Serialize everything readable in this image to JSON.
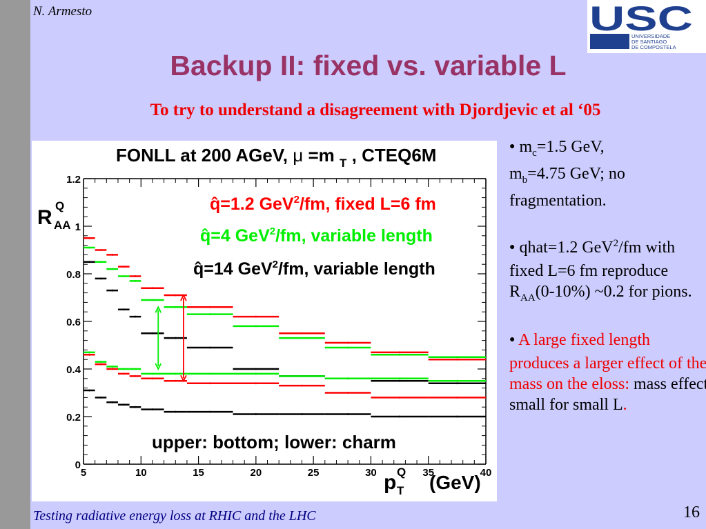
{
  "slide": {
    "author": "N. Armesto",
    "title": "Backup II: fixed vs. variable L",
    "subtitle": "To try to understand a disagreement with Djordjevic et al ‘05",
    "footer": "Testing radiative energy loss at RHIC and the LHC",
    "page_number": "16"
  },
  "logo": {
    "text": "USC",
    "lines": [
      "UNIVERSIDADE",
      "DE SANTIAGO",
      "DE COMPOSTELA"
    ],
    "color": "#1f3f8f"
  },
  "bullets": {
    "b1": {
      "mc_pre": "m",
      "mc_sub": "c",
      "mc_val": "=1.5 GeV,",
      "mb_pre": "m",
      "mb_sub": "b",
      "mb_val": "=4.75 GeV; no fragmentation."
    },
    "b2": {
      "l1a": "qhat=1.2 GeV",
      "l1sup": "2",
      "l1b": "/fm",
      "l2": "with fixed L=6 fm reproduce R",
      "l2sub": "AA",
      "l2b": "(0-10%)",
      "l3": "~0.2 for pions."
    },
    "b3": {
      "red": "A large fixed length produces a larger effect of the mass on the eloss:",
      "black": " mass effect small for small L",
      "end": "."
    }
  },
  "chart_data": {
    "type": "scatter",
    "title_prefix": "FONLL at 200 AGeV,",
    "title_mu": "μ",
    "title_rest": "=m",
    "title_sub": "T",
    "title_end": ", CTEQ6M",
    "ylabel": "R",
    "ylabel_sup": "Q",
    "ylabel_sub": "AA",
    "xlabel_main": "p",
    "xlabel_sup": "Q",
    "xlabel_sub": "T",
    "xlabel_unit": "(GeV)",
    "xlim": [
      5,
      40
    ],
    "ylim": [
      0,
      1.2
    ],
    "x_ticks": [
      "5",
      "10",
      "15",
      "20",
      "25",
      "30",
      "35",
      "40"
    ],
    "y_ticks": [
      "0",
      "0.2",
      "0.4",
      "0.6",
      "0.8",
      "1",
      "1.2"
    ],
    "legend": [
      {
        "pre": "q̂=1.2 GeV",
        "sup": "2",
        "post": "/fm, fixed L=6 fm",
        "color": "#ff0000"
      },
      {
        "pre": "q̂=4 GeV",
        "sup": "2",
        "post": "/fm, variable length",
        "color": "#00ee00"
      },
      {
        "pre": "q̂=14 GeV",
        "sup": "2",
        "post": "/fm, variable length",
        "color": "#000000"
      }
    ],
    "annotation": "upper: bottom; lower: charm",
    "bins": [
      [
        5,
        6
      ],
      [
        6,
        7
      ],
      [
        7,
        8
      ],
      [
        8,
        9
      ],
      [
        9,
        10
      ],
      [
        10,
        12
      ],
      [
        12,
        14
      ],
      [
        14,
        18
      ],
      [
        18,
        22
      ],
      [
        22,
        26
      ],
      [
        26,
        30
      ],
      [
        30,
        35
      ],
      [
        35,
        40
      ]
    ],
    "series": [
      {
        "color": "#ff0000",
        "group": "bottom",
        "values": [
          0.95,
          0.9,
          0.88,
          0.83,
          0.79,
          0.74,
          0.71,
          0.66,
          0.62,
          0.55,
          0.51,
          0.47,
          0.44
        ]
      },
      {
        "color": "#00ee00",
        "group": "bottom",
        "values": [
          0.91,
          0.85,
          0.82,
          0.79,
          0.77,
          0.69,
          0.66,
          0.63,
          0.58,
          0.53,
          0.49,
          0.46,
          0.45
        ]
      },
      {
        "color": "#000000",
        "group": "bottom",
        "values": [
          0.85,
          0.78,
          0.73,
          0.65,
          0.62,
          0.55,
          0.53,
          0.49,
          0.4,
          0.37,
          0.36,
          0.35,
          0.34
        ]
      },
      {
        "color": "#00ee00",
        "group": "charm",
        "values": [
          0.47,
          0.43,
          0.41,
          0.4,
          0.4,
          0.38,
          0.38,
          0.38,
          0.38,
          0.37,
          0.36,
          0.36,
          0.35
        ]
      },
      {
        "color": "#ff0000",
        "group": "charm",
        "values": [
          0.46,
          0.42,
          0.4,
          0.38,
          0.37,
          0.36,
          0.35,
          0.34,
          0.34,
          0.33,
          0.3,
          0.28,
          0.28
        ]
      },
      {
        "color": "#000000",
        "group": "charm",
        "values": [
          0.31,
          0.28,
          0.26,
          0.25,
          0.24,
          0.23,
          0.22,
          0.22,
          0.21,
          0.21,
          0.21,
          0.2,
          0.2
        ]
      }
    ],
    "arrows": [
      {
        "x": 11.5,
        "y1": 0.4,
        "y2": 0.66,
        "color": "#00ee00"
      },
      {
        "x": 13.7,
        "y1": 0.35,
        "y2": 0.71,
        "color": "#ff0000"
      }
    ]
  }
}
